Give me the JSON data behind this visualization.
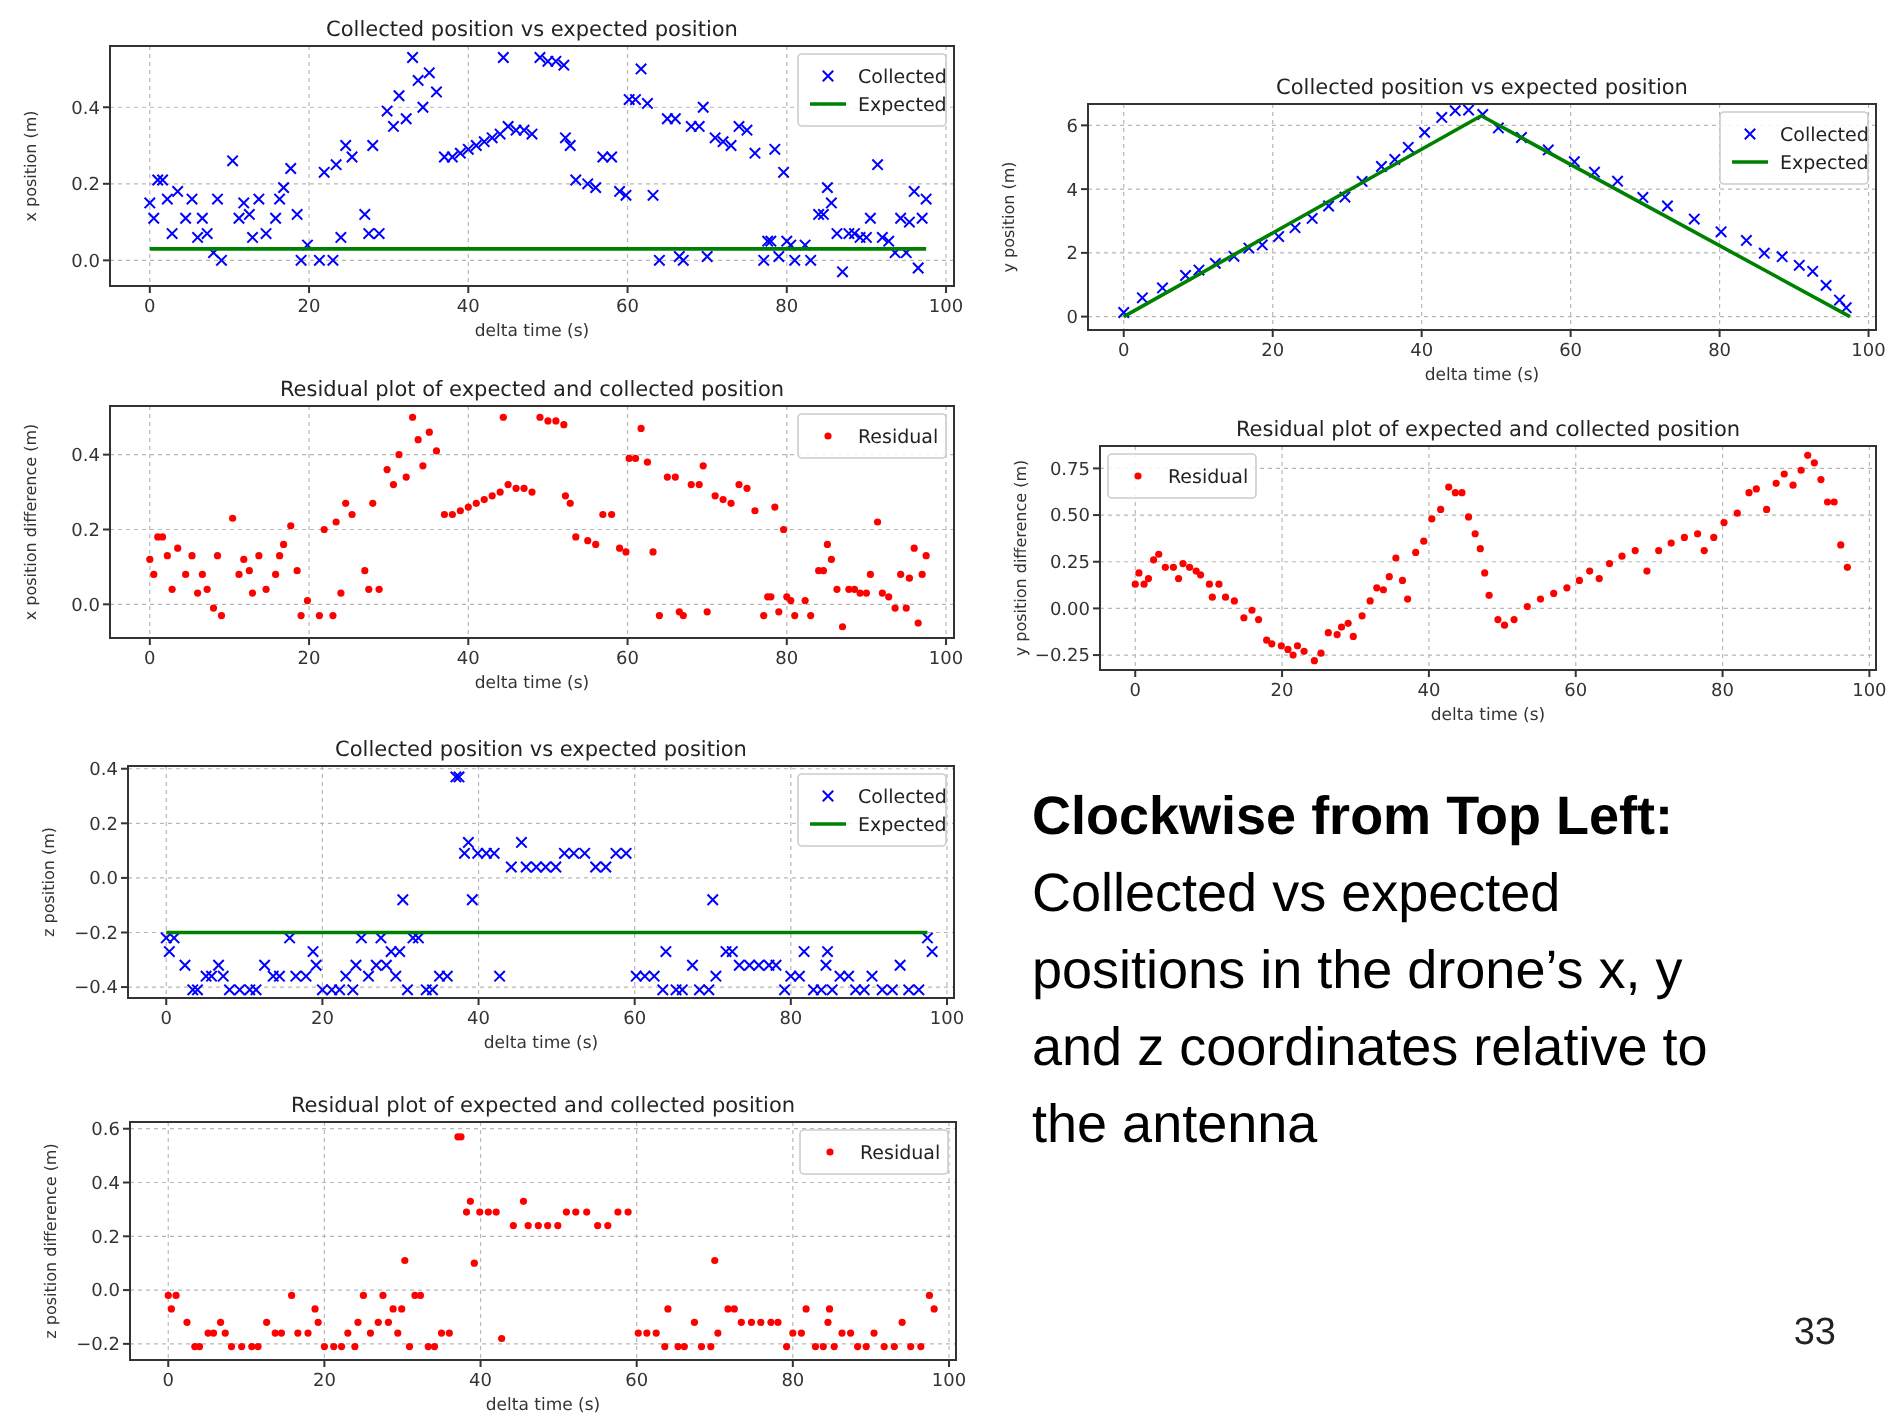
{
  "chart_data": [
    {
      "type": "scatter",
      "title": "Collected position vs expected position",
      "xlabel": "delta time (s)",
      "ylabel": "x position (m)",
      "xlim": [
        -5,
        101
      ],
      "ylim": [
        -0.067,
        0.56
      ],
      "xticks": [
        0,
        20,
        40,
        60,
        80,
        100
      ],
      "yticks": [
        {
          "value": 0,
          "label": "0.0"
        },
        {
          "value": 0.2,
          "label": "0.2"
        },
        {
          "value": 0.4,
          "label": "0.4"
        }
      ],
      "grid": true,
      "legend": "top right",
      "series": [
        {
          "name": "Collected",
          "type": "scatter",
          "marker": "cross",
          "color": "#0000ff",
          "x": [
            0,
            0.5,
            1,
            1.6,
            2.2,
            2.8,
            3.5,
            4.5,
            5.3,
            6,
            6.6,
            7.2,
            8,
            8.5,
            9,
            10.4,
            11.2,
            11.8,
            12.5,
            12.9,
            13.7,
            14.6,
            15.8,
            16.3,
            16.8,
            17.7,
            18.5,
            19,
            19.8,
            21.3,
            21.9,
            23,
            23.4,
            24,
            24.6,
            25.4,
            27,
            27.5,
            28,
            28.8,
            29.8,
            30.6,
            31.3,
            32.2,
            33,
            33.7,
            34.3,
            35.1,
            36,
            37,
            38,
            39,
            40,
            41,
            42,
            43,
            44,
            44.4,
            45,
            46,
            47,
            48,
            49,
            50,
            51,
            52,
            52.2,
            52.8,
            53.5,
            55,
            56,
            56.9,
            58,
            59,
            59.8,
            60.2,
            61,
            61.7,
            62.5,
            63.2,
            64,
            65,
            66,
            66.5,
            67,
            68,
            69,
            69.5,
            70,
            71,
            72,
            73,
            74,
            75,
            76,
            77.1,
            77.6,
            78,
            78.5,
            79,
            79.6,
            80,
            80.5,
            81,
            82.3,
            83,
            84,
            84.6,
            85.1,
            85.6,
            86.3,
            87,
            87.8,
            88.5,
            89.2,
            90,
            90.5,
            91.4,
            92,
            92.8,
            93.6,
            94.3,
            95,
            95.4,
            96,
            96.5,
            97,
            97.5
          ],
          "values": [
            0.15,
            0.11,
            0.21,
            0.21,
            0.16,
            0.07,
            0.18,
            0.11,
            0.16,
            0.06,
            0.11,
            0.07,
            0.02,
            0.16,
            0,
            0.26,
            0.11,
            0.15,
            0.12,
            0.06,
            0.16,
            0.07,
            0.11,
            0.16,
            0.19,
            0.24,
            0.12,
            0,
            0.04,
            0,
            0.23,
            0,
            0.25,
            0.06,
            0.3,
            0.27,
            0.12,
            0.07,
            0.3,
            0.07,
            0.39,
            0.35,
            0.43,
            0.37,
            0.53,
            0.47,
            0.4,
            0.49,
            0.44,
            0.27,
            0.27,
            0.28,
            0.29,
            0.3,
            0.31,
            0.32,
            0.33,
            0.53,
            0.35,
            0.34,
            0.34,
            0.33,
            0.53,
            0.52,
            0.52,
            0.51,
            0.32,
            0.3,
            0.21,
            0.2,
            0.19,
            0.27,
            0.27,
            0.18,
            0.17,
            0.42,
            0.42,
            0.5,
            0.41,
            0.17,
            0,
            0.37,
            0.37,
            0.01,
            0,
            0.35,
            0.35,
            0.4,
            0.01,
            0.32,
            0.31,
            0.3,
            0.35,
            0.34,
            0.28,
            0,
            0.05,
            0.05,
            0.29,
            0.01,
            0.23,
            0.05,
            0.04,
            0,
            0.04,
            0,
            0.12,
            0.12,
            0.19,
            0.15,
            0.07,
            -0.03,
            0.07,
            0.07,
            0.06,
            0.06,
            0.11,
            0.25,
            0.06,
            0.05,
            0.02,
            0.11,
            0.02,
            0.1,
            0.18,
            -0.02,
            0.11,
            0.16
          ]
        },
        {
          "name": "Expected",
          "type": "line",
          "line_style": "solid",
          "color": "#008000",
          "x": [
            0,
            97.5
          ],
          "values": [
            0.03,
            0.03
          ]
        }
      ]
    },
    {
      "type": "scatter",
      "title": "Collected position vs expected position",
      "xlabel": "delta time (s)",
      "ylabel": "y position (m)",
      "xlim": [
        -4.8,
        101
      ],
      "ylim": [
        -0.42,
        6.67
      ],
      "xticks": [
        0,
        20,
        40,
        60,
        80,
        100
      ],
      "yticks": [
        0,
        2,
        4,
        6
      ],
      "grid": true,
      "legend": "top right",
      "series": [
        {
          "name": "Collected",
          "type": "scatter",
          "marker": "cross",
          "color": "#0000ff",
          "x": [
            0,
            2.5,
            5.2,
            8.3,
            10.1,
            12.3,
            14.8,
            16.8,
            18.6,
            20.8,
            23,
            25.3,
            27.5,
            29.7,
            32,
            34.6,
            36.4,
            38.2,
            40.4,
            42.7,
            44.5,
            46.3,
            48.2,
            50.3,
            53.4,
            57,
            60.5,
            63.2,
            66.3,
            69.7,
            73,
            76.6,
            80.2,
            83.6,
            86,
            88.4,
            90.7,
            92.5,
            94.3,
            96.1,
            97
          ],
          "values": [
            0.13,
            0.59,
            0.9,
            1.29,
            1.46,
            1.67,
            1.89,
            2.15,
            2.25,
            2.51,
            2.79,
            3.08,
            3.47,
            3.75,
            4.24,
            4.71,
            4.93,
            5.31,
            5.78,
            6.25,
            6.46,
            6.48,
            6.34,
            5.92,
            5.62,
            5.23,
            4.86,
            4.53,
            4.25,
            3.74,
            3.47,
            3.06,
            2.66,
            2.39,
            1.99,
            1.88,
            1.61,
            1.42,
            0.98,
            0.52,
            0.28
          ]
        },
        {
          "name": "Expected",
          "type": "line",
          "line_style": "solid",
          "color": "#008000",
          "x": [
            0,
            48,
            97.5
          ],
          "values": [
            0,
            6.3,
            0
          ]
        }
      ]
    },
    {
      "type": "scatter",
      "title": "Residual plot of expected and collected position",
      "xlabel": "delta time (s)",
      "ylabel": "x position difference (m)",
      "xlim": [
        -5,
        101
      ],
      "ylim": [
        -0.09,
        0.53
      ],
      "xticks": [
        0,
        20,
        40,
        60,
        80,
        100
      ],
      "yticks": [
        {
          "value": 0,
          "label": "0.0"
        },
        {
          "value": 0.2,
          "label": "0.2"
        },
        {
          "value": 0.4,
          "label": "0.4"
        }
      ],
      "grid": true,
      "legend": "top right",
      "series": [
        {
          "name": "Residual",
          "type": "scatter",
          "marker": "circle",
          "color": "#ff0000",
          "x": [
            0,
            0.5,
            1,
            1.6,
            2.2,
            2.8,
            3.5,
            4.5,
            5.3,
            6,
            6.6,
            7.2,
            8,
            8.5,
            9,
            10.4,
            11.2,
            11.8,
            12.5,
            12.9,
            13.7,
            14.6,
            15.8,
            16.3,
            16.8,
            17.7,
            18.5,
            19,
            19.8,
            21.3,
            21.9,
            23,
            23.4,
            24,
            24.6,
            25.4,
            27,
            27.5,
            28,
            28.8,
            29.8,
            30.6,
            31.3,
            32.2,
            33,
            33.7,
            34.3,
            35.1,
            36,
            37,
            38,
            39,
            40,
            41,
            42,
            43,
            44,
            44.4,
            45,
            46,
            47,
            48,
            49,
            50,
            51,
            52,
            52.2,
            52.8,
            53.5,
            55,
            56,
            56.9,
            58,
            59,
            59.8,
            60.2,
            61,
            61.7,
            62.5,
            63.2,
            64,
            65,
            66,
            66.5,
            67,
            68,
            69,
            69.5,
            70,
            71,
            72,
            73,
            74,
            75,
            76,
            77.1,
            77.6,
            78,
            78.5,
            79,
            79.6,
            80,
            80.5,
            81,
            82.3,
            83,
            84,
            84.6,
            85.1,
            85.6,
            86.3,
            87,
            87.8,
            88.5,
            89.2,
            90,
            90.5,
            91.4,
            92,
            92.8,
            93.6,
            94.3,
            95,
            95.4,
            96,
            96.5,
            97,
            97.5
          ],
          "values": [
            0.12,
            0.08,
            0.18,
            0.18,
            0.13,
            0.04,
            0.15,
            0.08,
            0.13,
            0.03,
            0.08,
            0.04,
            -0.01,
            0.13,
            -0.03,
            0.23,
            0.08,
            0.12,
            0.09,
            0.03,
            0.13,
            0.04,
            0.08,
            0.13,
            0.16,
            0.21,
            0.09,
            -0.03,
            0.01,
            -0.03,
            0.2,
            -0.03,
            0.22,
            0.03,
            0.27,
            0.24,
            0.09,
            0.04,
            0.27,
            0.04,
            0.36,
            0.32,
            0.4,
            0.34,
            0.5,
            0.44,
            0.37,
            0.46,
            0.41,
            0.24,
            0.24,
            0.25,
            0.26,
            0.27,
            0.28,
            0.29,
            0.3,
            0.5,
            0.32,
            0.31,
            0.31,
            0.3,
            0.5,
            0.49,
            0.49,
            0.48,
            0.29,
            0.27,
            0.18,
            0.17,
            0.16,
            0.24,
            0.24,
            0.15,
            0.14,
            0.39,
            0.39,
            0.47,
            0.38,
            0.14,
            -0.03,
            0.34,
            0.34,
            -0.02,
            -0.03,
            0.32,
            0.32,
            0.37,
            -0.02,
            0.29,
            0.28,
            0.27,
            0.32,
            0.31,
            0.25,
            -0.03,
            0.02,
            0.02,
            0.26,
            -0.02,
            0.2,
            0.02,
            0.01,
            -0.03,
            0.01,
            -0.03,
            0.09,
            0.09,
            0.16,
            0.12,
            0.04,
            -0.06,
            0.04,
            0.04,
            0.03,
            0.03,
            0.08,
            0.22,
            0.03,
            0.02,
            -0.01,
            0.08,
            -0.01,
            0.07,
            0.15,
            -0.05,
            0.08,
            0.13
          ]
        }
      ]
    },
    {
      "type": "scatter",
      "title": "Residual plot of expected and collected position",
      "xlabel": "delta time (s)",
      "ylabel": "y position difference (m)",
      "xlim": [
        -4.8,
        100.9
      ],
      "ylim": [
        -0.33,
        0.87
      ],
      "xticks": [
        0,
        20,
        40,
        60,
        80,
        100
      ],
      "yticks": [
        {
          "value": -0.25,
          "label": "−0.25"
        },
        {
          "value": 0,
          "label": "0.00"
        },
        {
          "value": 0.25,
          "label": "0.25"
        },
        {
          "value": 0.5,
          "label": "0.50"
        },
        {
          "value": 0.75,
          "label": "0.75"
        }
      ],
      "grid": true,
      "legend": "top left",
      "series": [
        {
          "name": "Residual",
          "type": "scatter",
          "marker": "circle",
          "color": "#ff0000",
          "x": [
            0,
            0.5,
            1.2,
            1.8,
            2.5,
            3.2,
            4.1,
            5.2,
            5.9,
            6.5,
            7.4,
            8.3,
            8.9,
            10.1,
            10.5,
            11.4,
            12.3,
            13.5,
            14.8,
            15.9,
            16.8,
            17.9,
            18.6,
            19.9,
            20.8,
            21.5,
            22.1,
            23,
            24.4,
            25.3,
            26.3,
            27.5,
            28.1,
            29,
            29.7,
            30.9,
            32,
            32.9,
            33.8,
            34.6,
            35.5,
            36.4,
            37.1,
            38.2,
            39.3,
            40.4,
            41.6,
            42.7,
            43.6,
            44.5,
            45.4,
            46.3,
            47,
            47.6,
            48.2,
            49.4,
            50.3,
            51.6,
            53.4,
            55.2,
            57,
            58.8,
            60.5,
            61.9,
            63.2,
            64.6,
            66.3,
            68.1,
            69.7,
            71.3,
            73,
            74.8,
            76.6,
            77.5,
            78.8,
            80.2,
            82,
            83.6,
            84.6,
            86,
            87.3,
            88.4,
            89.6,
            90.7,
            91.6,
            92.5,
            93.4,
            94.3,
            95.2,
            96.1,
            97
          ],
          "values": [
            0.13,
            0.19,
            0.13,
            0.16,
            0.26,
            0.29,
            0.22,
            0.22,
            0.16,
            0.24,
            0.22,
            0.2,
            0.18,
            0.13,
            0.06,
            0.13,
            0.06,
            0.04,
            -0.05,
            -0.01,
            -0.06,
            -0.17,
            -0.19,
            -0.2,
            -0.22,
            -0.25,
            -0.2,
            -0.23,
            -0.28,
            -0.24,
            -0.13,
            -0.14,
            -0.1,
            -0.08,
            -0.15,
            -0.04,
            0.04,
            0.11,
            0.1,
            0.17,
            0.27,
            0.15,
            0.05,
            0.3,
            0.36,
            0.48,
            0.53,
            0.65,
            0.62,
            0.62,
            0.49,
            0.4,
            0.32,
            0.19,
            0.07,
            -0.06,
            -0.09,
            -0.06,
            0.01,
            0.05,
            0.08,
            0.11,
            0.15,
            0.2,
            0.16,
            0.24,
            0.28,
            0.31,
            0.2,
            0.31,
            0.35,
            0.38,
            0.4,
            0.31,
            0.38,
            0.46,
            0.51,
            0.62,
            0.64,
            0.53,
            0.67,
            0.72,
            0.66,
            0.74,
            0.82,
            0.78,
            0.69,
            0.57,
            0.57,
            0.34,
            0.22
          ]
        }
      ]
    },
    {
      "type": "scatter",
      "title": "Collected position vs expected position",
      "xlabel": "delta time (s)",
      "ylabel": "z position (m)",
      "xlim": [
        -4.9,
        100.9
      ],
      "ylim": [
        -0.44,
        0.41
      ],
      "xticks": [
        0,
        20,
        40,
        60,
        80,
        100
      ],
      "yticks": [
        {
          "value": -0.4,
          "label": "−0.4"
        },
        {
          "value": -0.2,
          "label": "−0.2"
        },
        {
          "value": 0,
          "label": "0.0"
        },
        {
          "value": 0.2,
          "label": "0.2"
        },
        {
          "value": 0.4,
          "label": "0.4"
        }
      ],
      "grid": true,
      "legend": "top right",
      "series": [
        {
          "name": "Collected",
          "type": "scatter",
          "marker": "cross",
          "color": "#0000ff",
          "x": [
            0,
            0.4,
            1,
            2.4,
            3.4,
            4,
            5.1,
            5.8,
            6.7,
            7.3,
            8.1,
            9.4,
            10.7,
            11.5,
            12.6,
            13.7,
            14.5,
            15.8,
            16.6,
            17.9,
            18.8,
            19.2,
            20,
            21.2,
            22.2,
            23,
            23.9,
            24.3,
            25,
            25.9,
            26.9,
            27.5,
            28.2,
            28.8,
            29.4,
            29.9,
            30.3,
            30.9,
            31.6,
            32.3,
            33.3,
            34.1,
            35,
            36,
            37.1,
            37.5,
            38.2,
            38.7,
            39.2,
            39.9,
            41,
            42,
            42.7,
            44.2,
            45.5,
            46.1,
            47.4,
            48.6,
            49.9,
            51,
            52.2,
            53.6,
            55,
            56.3,
            57.6,
            58.9,
            60.2,
            61.3,
            62.5,
            63.6,
            64,
            65.3,
            66.1,
            67.4,
            68.3,
            69.5,
            70,
            70.4,
            71.7,
            72.5,
            73.4,
            74.7,
            75.9,
            77.2,
            78.1,
            79.2,
            80,
            81.1,
            81.7,
            82.9,
            83.9,
            84.5,
            84.7,
            85.3,
            86.3,
            87.4,
            88.3,
            89.4,
            90.4,
            91.7,
            93,
            94,
            95.1,
            96.4,
            97.5,
            98.1
          ],
          "values": [
            -0.22,
            -0.27,
            -0.22,
            -0.32,
            -0.41,
            -0.41,
            -0.36,
            -0.36,
            -0.32,
            -0.36,
            -0.41,
            -0.41,
            -0.41,
            -0.41,
            -0.32,
            -0.36,
            -0.36,
            -0.22,
            -0.36,
            -0.36,
            -0.27,
            -0.32,
            -0.41,
            -0.41,
            -0.41,
            -0.36,
            -0.41,
            -0.32,
            -0.22,
            -0.36,
            -0.32,
            -0.22,
            -0.32,
            -0.27,
            -0.36,
            -0.27,
            -0.08,
            -0.41,
            -0.22,
            -0.22,
            -0.41,
            -0.41,
            -0.36,
            -0.36,
            0.37,
            0.37,
            0.09,
            0.13,
            -0.08,
            0.09,
            0.09,
            0.09,
            -0.36,
            0.04,
            0.13,
            0.04,
            0.04,
            0.04,
            0.04,
            0.09,
            0.09,
            0.09,
            0.04,
            0.04,
            0.09,
            0.09,
            -0.36,
            -0.36,
            -0.36,
            -0.41,
            -0.27,
            -0.41,
            -0.41,
            -0.32,
            -0.41,
            -0.41,
            -0.08,
            -0.36,
            -0.27,
            -0.27,
            -0.32,
            -0.32,
            -0.32,
            -0.32,
            -0.32,
            -0.41,
            -0.36,
            -0.36,
            -0.27,
            -0.41,
            -0.41,
            -0.32,
            -0.27,
            -0.41,
            -0.36,
            -0.36,
            -0.41,
            -0.41,
            -0.36,
            -0.41,
            -0.41,
            -0.32,
            -0.41,
            -0.41,
            -0.22,
            -0.27
          ]
        },
        {
          "name": "Expected",
          "type": "line",
          "line_style": "solid",
          "color": "#008000",
          "x": [
            0,
            97.5
          ],
          "values": [
            -0.2,
            -0.2
          ]
        }
      ]
    },
    {
      "type": "other",
      "title": "Clockwise from Top Left:",
      "annotations": [
        "Collected vs expected positions in the drone’s x, y and z coordinates relative to the antenna",
        "33"
      ]
    },
    {
      "type": "scatter",
      "title": "Residual plot of expected and collected position",
      "xlabel": "delta time (s)",
      "ylabel": "z position difference (m)",
      "xlim": [
        -4.9,
        100.9
      ],
      "ylim": [
        -0.26,
        0.625
      ],
      "xticks": [
        0,
        20,
        40,
        60,
        80,
        100
      ],
      "yticks": [
        {
          "value": -0.2,
          "label": "−0.2"
        },
        {
          "value": 0,
          "label": "0.0"
        },
        {
          "value": 0.2,
          "label": "0.2"
        },
        {
          "value": 0.4,
          "label": "0.4"
        },
        {
          "value": 0.6,
          "label": "0.6"
        }
      ],
      "grid": true,
      "legend": "top right",
      "series": [
        {
          "name": "Residual",
          "type": "scatter",
          "marker": "circle",
          "color": "#ff0000",
          "x": [
            0,
            0.4,
            1,
            2.4,
            3.4,
            4,
            5.1,
            5.8,
            6.7,
            7.3,
            8.1,
            9.4,
            10.7,
            11.5,
            12.6,
            13.7,
            14.5,
            15.8,
            16.6,
            17.9,
            18.8,
            19.2,
            20,
            21.2,
            22.2,
            23,
            23.9,
            24.3,
            25,
            25.9,
            26.9,
            27.5,
            28.2,
            28.8,
            29.4,
            29.9,
            30.3,
            30.9,
            31.6,
            32.3,
            33.3,
            34.1,
            35,
            36,
            37.1,
            37.5,
            38.2,
            38.7,
            39.2,
            39.9,
            41,
            42,
            42.7,
            44.2,
            45.5,
            46.1,
            47.4,
            48.6,
            49.9,
            51,
            52.2,
            53.6,
            55,
            56.3,
            57.6,
            58.9,
            60.2,
            61.3,
            62.5,
            63.6,
            64,
            65.3,
            66.1,
            67.4,
            68.3,
            69.5,
            70,
            70.4,
            71.7,
            72.5,
            73.4,
            74.7,
            75.9,
            77.2,
            78.1,
            79.2,
            80,
            81.1,
            81.7,
            82.9,
            83.9,
            84.5,
            84.7,
            85.3,
            86.3,
            87.4,
            88.3,
            89.4,
            90.4,
            91.7,
            93,
            94,
            95.1,
            96.4,
            97.5,
            98.1
          ],
          "values": [
            -0.02,
            -0.07,
            -0.02,
            -0.12,
            -0.21,
            -0.21,
            -0.16,
            -0.16,
            -0.12,
            -0.16,
            -0.21,
            -0.21,
            -0.21,
            -0.21,
            -0.12,
            -0.16,
            -0.16,
            -0.02,
            -0.16,
            -0.16,
            -0.07,
            -0.12,
            -0.21,
            -0.21,
            -0.21,
            -0.16,
            -0.21,
            -0.12,
            -0.02,
            -0.16,
            -0.12,
            -0.02,
            -0.12,
            -0.07,
            -0.16,
            -0.07,
            0.11,
            -0.21,
            -0.02,
            -0.02,
            -0.21,
            -0.21,
            -0.16,
            -0.16,
            0.57,
            0.57,
            0.29,
            0.33,
            0.1,
            0.29,
            0.29,
            0.29,
            -0.18,
            0.24,
            0.33,
            0.24,
            0.24,
            0.24,
            0.24,
            0.29,
            0.29,
            0.29,
            0.24,
            0.24,
            0.29,
            0.29,
            -0.16,
            -0.16,
            -0.16,
            -0.21,
            -0.07,
            -0.21,
            -0.21,
            -0.12,
            -0.21,
            -0.21,
            0.11,
            -0.16,
            -0.07,
            -0.07,
            -0.12,
            -0.12,
            -0.12,
            -0.12,
            -0.12,
            -0.21,
            -0.16,
            -0.16,
            -0.07,
            -0.21,
            -0.21,
            -0.12,
            -0.07,
            -0.21,
            -0.16,
            -0.16,
            -0.21,
            -0.21,
            -0.16,
            -0.21,
            -0.21,
            -0.12,
            -0.21,
            -0.21,
            -0.02,
            -0.07
          ]
        }
      ]
    }
  ]
}
